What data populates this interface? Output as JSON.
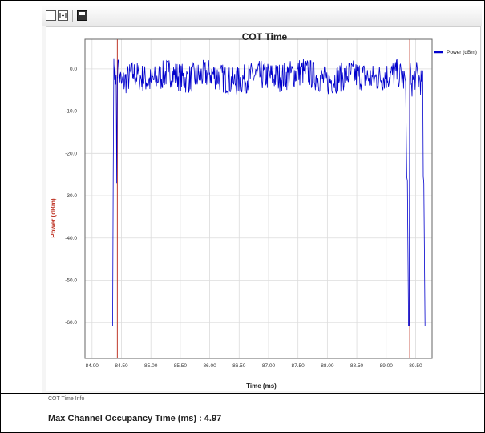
{
  "toolbar": {
    "buttons": [
      "select-icon",
      "zoom-icon",
      "save-icon"
    ]
  },
  "chart_data": {
    "type": "line",
    "title": "COT Time",
    "xlabel": "Time (ms)",
    "ylabel": "Power (dBm)",
    "xlim": [
      83.88,
      89.78
    ],
    "ylim": [
      -68.5,
      7.0
    ],
    "xticks": [
      "84.00",
      "84.50",
      "85.00",
      "85.50",
      "86.00",
      "86.50",
      "87.00",
      "87.50",
      "88.00",
      "88.50",
      "89.00",
      "89.50"
    ],
    "yticks": [
      "0.0",
      "-10.0",
      "-20.0",
      "-30.0",
      "-40.0",
      "-50.0",
      "-60.0"
    ],
    "grid": true,
    "legend_position": "top-right",
    "series": [
      {
        "name": "Power (dBm)",
        "color": "#0000cc",
        "x": [
          83.88,
          84.35,
          84.36,
          84.37,
          84.38,
          84.4,
          84.41,
          84.42,
          84.43,
          84.44,
          84.46,
          84.5,
          84.7,
          85.0,
          85.3,
          85.6,
          86.0,
          86.4,
          86.8,
          87.2,
          87.6,
          88.0,
          88.4,
          88.8,
          89.2,
          89.33,
          89.35,
          89.36,
          89.38,
          89.39,
          89.4,
          89.42,
          89.43,
          89.5,
          89.6,
          89.62,
          89.63,
          89.64,
          89.66,
          89.67,
          89.68,
          89.78
        ],
        "values": [
          -60.8,
          -60.8,
          -25.5,
          2.5,
          -0.8,
          -3.0,
          -1.5,
          -27.0,
          -2.0,
          2.0,
          -1.0,
          -3.5,
          -1.2,
          -3.0,
          -0.8,
          -2.5,
          -1.0,
          -3.2,
          -1.5,
          -2.0,
          -0.5,
          -3.0,
          -1.2,
          -2.4,
          -1.0,
          -3.0,
          -25.5,
          -26.5,
          -60.8,
          -60.8,
          -2.5,
          -1.0,
          -3.5,
          -1.5,
          -3.0,
          -0.5,
          -25.5,
          -27.0,
          -60.8,
          -60.8,
          -60.8,
          -60.8
        ]
      }
    ],
    "markers": [
      {
        "x": 84.43,
        "color": "#c0392b"
      },
      {
        "x": 89.4,
        "color": "#c0392b"
      }
    ]
  },
  "info": {
    "section_label": "COT Time Info",
    "result_text": "Max Channel Occupancy Time (ms) : 4.97"
  }
}
